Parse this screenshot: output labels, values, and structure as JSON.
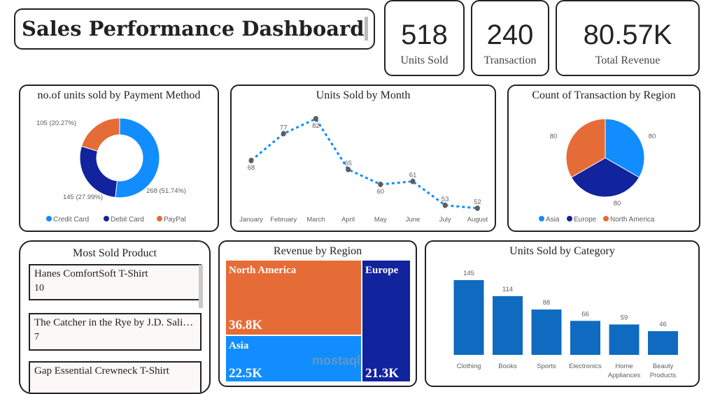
{
  "title": "Sales Performance Dashboard",
  "kpis": [
    {
      "value": "518",
      "label": "Units Sold"
    },
    {
      "value": "240",
      "label": "Transaction"
    },
    {
      "value": "80.57K",
      "label": "Total Revenue"
    }
  ],
  "colors": {
    "credit": "#118DFF",
    "debit": "#12239E",
    "paypal": "#E66C37",
    "bar": "#0F6BC0",
    "line": "#118DFF",
    "marker": "#605E5C"
  },
  "payment": {
    "title": "no.of units sold by Payment Method",
    "slices": [
      {
        "name": "Credit Card",
        "value": 268,
        "label": "268 (51.74%)"
      },
      {
        "name": "Debit Card",
        "value": 145,
        "label": "145 (27.99%)"
      },
      {
        "name": "PayPal",
        "value": 105,
        "label": "105 (20.27%)"
      }
    ]
  },
  "chart_data": [
    {
      "type": "pie",
      "title": "no.of units sold by Payment Method",
      "categories": [
        "Credit Card",
        "Debit Card",
        "PayPal"
      ],
      "values": [
        268,
        145,
        105
      ],
      "legend": "bottom",
      "donut": true
    },
    {
      "type": "line",
      "title": "Units Sold by Month",
      "categories": [
        "January",
        "February",
        "March",
        "April",
        "May",
        "June",
        "July",
        "August"
      ],
      "values": [
        68,
        77,
        82,
        65,
        60,
        61,
        53,
        52
      ]
    },
    {
      "type": "pie",
      "title": "Count of Transaction by Region",
      "categories": [
        "Asia",
        "Europe",
        "North America"
      ],
      "values": [
        80,
        80,
        80
      ],
      "legend": "bottom"
    },
    {
      "type": "bar",
      "title": "Units Sold by Category",
      "categories": [
        "Clothing",
        "Books",
        "Sports",
        "Electronics",
        "Home Appliances",
        "Beauty Products"
      ],
      "values": [
        145,
        114,
        88,
        66,
        59,
        46
      ]
    }
  ],
  "month": {
    "title": "Units Sold by Month"
  },
  "region_tx": {
    "title": "Count of Transaction by Region",
    "labels": [
      "80",
      "80",
      "80"
    ],
    "legend": [
      "Asia",
      "Europe",
      "North America"
    ]
  },
  "products": {
    "title": "Most Sold Product",
    "items": [
      {
        "name": "Hanes ComfortSoft T-Shirt",
        "count": "10"
      },
      {
        "name": "The Catcher in the Rye by J.D. Salinger",
        "count": "7"
      },
      {
        "name": "Gap Essential Crewneck T-Shirt",
        "count": ""
      }
    ]
  },
  "revenue": {
    "title": "Revenue by Region",
    "cells": [
      {
        "name": "North America",
        "value": "36.8K"
      },
      {
        "name": "Asia",
        "value": "22.5K"
      },
      {
        "name": "Europe",
        "value": "21.3K"
      }
    ]
  },
  "category": {
    "title": "Units Sold by Category",
    "labels": [
      "Clothing",
      "Books",
      "Sports",
      "Electronics",
      "Home\nAppliances",
      "Beauty\nProducts"
    ]
  },
  "watermark": "mostaql"
}
